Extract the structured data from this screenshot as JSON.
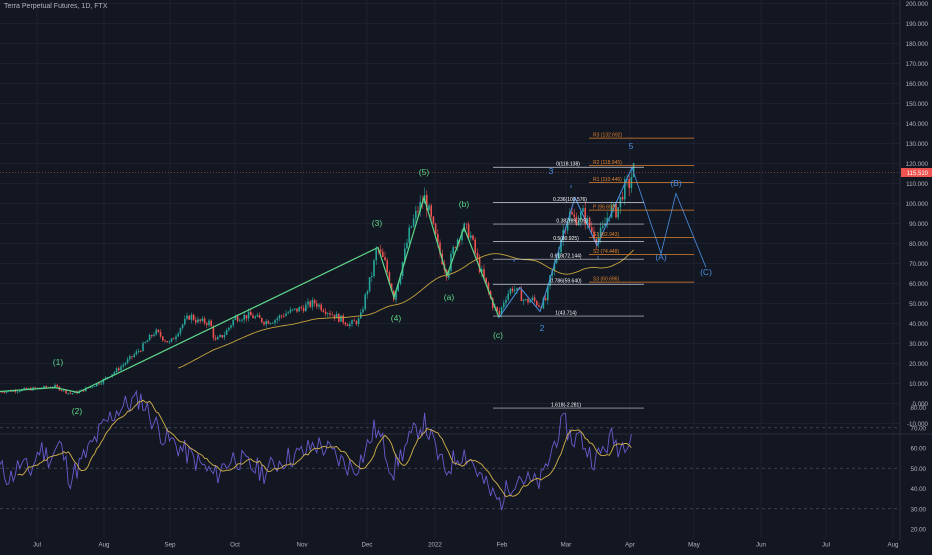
{
  "header": {
    "symbol_title": "Terra Perpetual Futures, 1D, FTX"
  },
  "price_axis": {
    "ticks": [
      "200.000",
      "190.000",
      "180.000",
      "170.000",
      "160.000",
      "150.000",
      "140.000",
      "130.000",
      "120.000",
      "110.000",
      "100.000",
      "90.000",
      "80.000",
      "70.000",
      "60.000",
      "50.000",
      "40.000",
      "30.000",
      "20.000",
      "10.000",
      "0.000",
      "-10.000"
    ],
    "last_price_label": "115.510",
    "last_price_value": 115.5
  },
  "rsi_axis": {
    "ticks": [
      "80.00",
      "70.00",
      "60.00",
      "50.00",
      "40.00",
      "30.00",
      "20.00"
    ]
  },
  "time_axis": {
    "labels": [
      "Jul",
      "Aug",
      "Sep",
      "Oct",
      "Nov",
      "Dec",
      "2022",
      "Feb",
      "Mar",
      "Apr",
      "May",
      "Jun",
      "Jul",
      "Aug"
    ]
  },
  "annotations": {
    "wave_labels_green": [
      "(1)",
      "(2)",
      "(3)",
      "(4)",
      "(5)",
      "(a)",
      "(b)",
      "(c)"
    ],
    "wave_labels_blue": [
      "2",
      "3",
      "5",
      "(A)",
      "(B)",
      "(C)"
    ],
    "fib_levels": [
      "0(118.138)",
      "0.236(100.576)",
      "0.382(89.709)",
      "0.5(80.925)",
      "0.618(72.144)",
      "0.786(59.640)",
      "1(43.714)",
      "1.618(-2.281)"
    ],
    "pivot_levels": [
      "R3 (132.692)",
      "R2 (118.945)",
      "R1 (110.446)",
      "P (96.698)",
      "S1 (82.943)",
      "S2 (74.448)",
      "S3 (60.696)"
    ]
  },
  "colors": {
    "background": "#131722",
    "candle_up": "#26a69a",
    "candle_down": "#ef5350",
    "wave_green": "#5fd68a",
    "wave_blue": "#4a90e2",
    "pivot_orange": "#e0832e",
    "ma_yellow": "#c8a43c",
    "rsi_purple": "#6a5acd",
    "rsi_ma": "#d4b24a",
    "price_line": "#ef5350"
  },
  "chart_data": [
    {
      "type": "candlestick",
      "title": "Terra Perpetual Futures, 1D, FTX",
      "ylim": [
        -15,
        200
      ],
      "close_path_waypoints": [
        [
          0.0,
          6.0
        ],
        [
          15.0,
          6.5
        ],
        [
          35.0,
          7.5
        ],
        [
          55.0,
          8.5
        ],
        [
          70.0,
          5.0
        ],
        [
          80.0,
          6.0
        ],
        [
          100.0,
          10.5
        ],
        [
          120.0,
          18.0
        ],
        [
          140.0,
          27.0
        ],
        [
          155.0,
          36.0
        ],
        [
          170.0,
          30.0
        ],
        [
          180.0,
          38.0
        ],
        [
          190.0,
          44.0
        ],
        [
          198.0,
          41.0
        ],
        [
          210.0,
          40.5
        ],
        [
          215.0,
          31.0
        ],
        [
          225.0,
          35.0
        ],
        [
          235.0,
          43.0
        ],
        [
          250.0,
          44.0
        ],
        [
          265.0,
          41.0
        ],
        [
          275.0,
          42.0
        ],
        [
          285.0,
          45.0
        ],
        [
          298.0,
          47.0
        ],
        [
          315.0,
          50.5
        ],
        [
          325.0,
          47.0
        ],
        [
          338.0,
          43.0
        ],
        [
          350.0,
          39.5
        ],
        [
          360.0,
          42.0
        ],
        [
          366.0,
          55.0
        ],
        [
          372.0,
          65.0
        ],
        [
          377.0,
          78.0
        ],
        [
          385.0,
          70.0
        ],
        [
          394.0,
          53.0
        ],
        [
          400.0,
          65.0
        ],
        [
          410.0,
          87.0
        ],
        [
          418.0,
          97.0
        ],
        [
          425.0,
          103.0
        ],
        [
          432.0,
          90.0
        ],
        [
          438.0,
          78.0
        ],
        [
          447.0,
          65.0
        ],
        [
          455.0,
          80.0
        ],
        [
          463.0,
          88.0
        ],
        [
          470.0,
          85.0
        ],
        [
          478.0,
          70.0
        ],
        [
          487.0,
          58.0
        ],
        [
          492.0,
          50.0
        ],
        [
          499.0,
          44.0
        ],
        [
          505.0,
          53.0
        ],
        [
          512.0,
          58.0
        ],
        [
          519.0,
          55.0
        ],
        [
          525.0,
          51.0
        ],
        [
          532.0,
          52.0
        ],
        [
          540.0,
          49.0
        ],
        [
          546.0,
          52.0
        ],
        [
          550.0,
          62.0
        ],
        [
          556.0,
          72.0
        ],
        [
          562.0,
          85.0
        ],
        [
          569.0,
          95.0
        ],
        [
          575.0,
          92.0
        ],
        [
          583.0,
          95.0
        ],
        [
          590.0,
          88.0
        ],
        [
          597.0,
          82.0
        ],
        [
          603.0,
          87.0
        ],
        [
          610.0,
          97.0
        ],
        [
          617.0,
          96.0
        ],
        [
          624.0,
          108.0
        ],
        [
          630.0,
          110.0
        ],
        [
          633.0,
          118.0
        ],
        [
          635.0,
          115.5
        ]
      ]
    },
    {
      "type": "line",
      "title": "Fibonacci retracement levels",
      "series": [
        {
          "name": "0(118.138)",
          "values": [
            118.138
          ]
        },
        {
          "name": "0.236(100.576)",
          "values": [
            100.576
          ]
        },
        {
          "name": "0.382(89.709)",
          "values": [
            89.709
          ]
        },
        {
          "name": "0.5(80.925)",
          "values": [
            80.925
          ]
        },
        {
          "name": "0.618(72.144)",
          "values": [
            72.144
          ]
        },
        {
          "name": "0.786(59.640)",
          "values": [
            59.64
          ]
        },
        {
          "name": "1(43.714)",
          "values": [
            43.714
          ]
        },
        {
          "name": "1.618(-2.281)",
          "values": [
            -2.281
          ]
        }
      ]
    },
    {
      "type": "line",
      "title": "Pivot points",
      "series": [
        {
          "name": "R3 (132.692)",
          "values": [
            132.692
          ]
        },
        {
          "name": "R2 (118.945)",
          "values": [
            118.945
          ]
        },
        {
          "name": "R1 (110.446)",
          "values": [
            110.446
          ]
        },
        {
          "name": "P (96.698)",
          "values": [
            96.698
          ]
        },
        {
          "name": "S1 (82.943)",
          "values": [
            82.943
          ]
        },
        {
          "name": "S2 (74.448)",
          "values": [
            74.448
          ]
        },
        {
          "name": "S3 (60.696)",
          "values": [
            60.696
          ]
        }
      ]
    },
    {
      "type": "line",
      "title": "RSI",
      "ylim": [
        15,
        90
      ],
      "rsi_waypoints": [
        [
          0.0,
          50.0
        ],
        [
          10.0,
          45.0
        ],
        [
          20.0,
          52.0
        ],
        [
          30.0,
          48.0
        ],
        [
          40.0,
          60.0
        ],
        [
          50.0,
          55.0
        ],
        [
          60.0,
          62.0
        ],
        [
          70.0,
          45.0
        ],
        [
          80.0,
          52.0
        ],
        [
          90.0,
          60.0
        ],
        [
          100.0,
          68.0
        ],
        [
          110.0,
          75.0
        ],
        [
          120.0,
          80.0
        ],
        [
          130.0,
          82.0
        ],
        [
          140.0,
          85.0
        ],
        [
          148.0,
          78.0
        ],
        [
          155.0,
          72.0
        ],
        [
          165.0,
          65.0
        ],
        [
          175.0,
          62.0
        ],
        [
          185.0,
          58.0
        ],
        [
          195.0,
          54.0
        ],
        [
          205.0,
          50.0
        ],
        [
          215.0,
          46.0
        ],
        [
          225.0,
          52.0
        ],
        [
          235.0,
          56.0
        ],
        [
          245.0,
          52.0
        ],
        [
          255.0,
          50.0
        ],
        [
          265.0,
          48.0
        ],
        [
          275.0,
          52.0
        ],
        [
          285.0,
          55.0
        ],
        [
          295.0,
          56.0
        ],
        [
          305.0,
          58.0
        ],
        [
          315.0,
          62.0
        ],
        [
          325.0,
          60.0
        ],
        [
          335.0,
          56.0
        ],
        [
          345.0,
          52.0
        ],
        [
          355.0,
          50.0
        ],
        [
          365.0,
          58.0
        ],
        [
          375.0,
          70.0
        ],
        [
          383.0,
          62.0
        ],
        [
          393.0,
          48.0
        ],
        [
          400.0,
          56.0
        ],
        [
          410.0,
          64.0
        ],
        [
          418.0,
          70.0
        ],
        [
          425.0,
          72.0
        ],
        [
          435.0,
          60.0
        ],
        [
          445.0,
          48.0
        ],
        [
          455.0,
          55.0
        ],
        [
          463.0,
          58.0
        ],
        [
          470.0,
          55.0
        ],
        [
          480.0,
          46.0
        ],
        [
          490.0,
          38.0
        ],
        [
          500.0,
          33.0
        ],
        [
          510.0,
          42.0
        ],
        [
          518.0,
          47.0
        ],
        [
          526.0,
          44.0
        ],
        [
          534.0,
          42.0
        ],
        [
          542.0,
          44.0
        ],
        [
          550.0,
          56.0
        ],
        [
          558.0,
          68.0
        ],
        [
          565.0,
          72.0
        ],
        [
          572.0,
          64.0
        ],
        [
          580.0,
          66.0
        ],
        [
          588.0,
          58.0
        ],
        [
          596.0,
          54.0
        ],
        [
          604.0,
          60.0
        ],
        [
          612.0,
          65.0
        ],
        [
          620.0,
          60.0
        ],
        [
          628.0,
          66.0
        ],
        [
          633.0,
          70.0
        ]
      ]
    }
  ]
}
